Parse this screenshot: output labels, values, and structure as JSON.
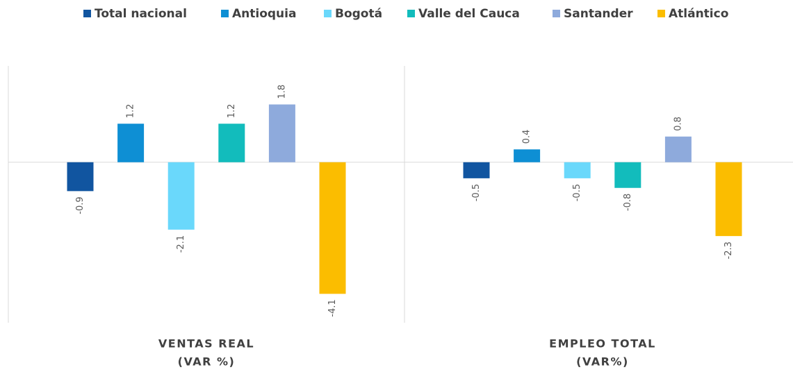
{
  "chart_data": {
    "type": "bar",
    "categories": [
      [
        "VENTAS REAL",
        "(VAR %)"
      ],
      [
        "EMPLEO TOTAL",
        "(VAR%)"
      ]
    ],
    "series": [
      {
        "name": "Total nacional",
        "color": "#1155a0",
        "values": [
          -0.9,
          -0.5
        ]
      },
      {
        "name": "Antioquia",
        "color": "#0e8fd4",
        "values": [
          1.2,
          0.4
        ]
      },
      {
        "name": "Bogotá",
        "color": "#6ad8fb",
        "values": [
          -2.1,
          -0.5
        ]
      },
      {
        "name": "Valle del Cauca",
        "color": "#12bcbc",
        "values": [
          1.2,
          -0.8
        ]
      },
      {
        "name": "Santander",
        "color": "#8eaadc",
        "values": [
          1.8,
          0.8
        ]
      },
      {
        "name": "Atlántico",
        "color": "#fbbd00",
        "values": [
          -4.1,
          -2.3
        ]
      }
    ],
    "ylim": [
      -5,
      3
    ],
    "legend": "top"
  }
}
